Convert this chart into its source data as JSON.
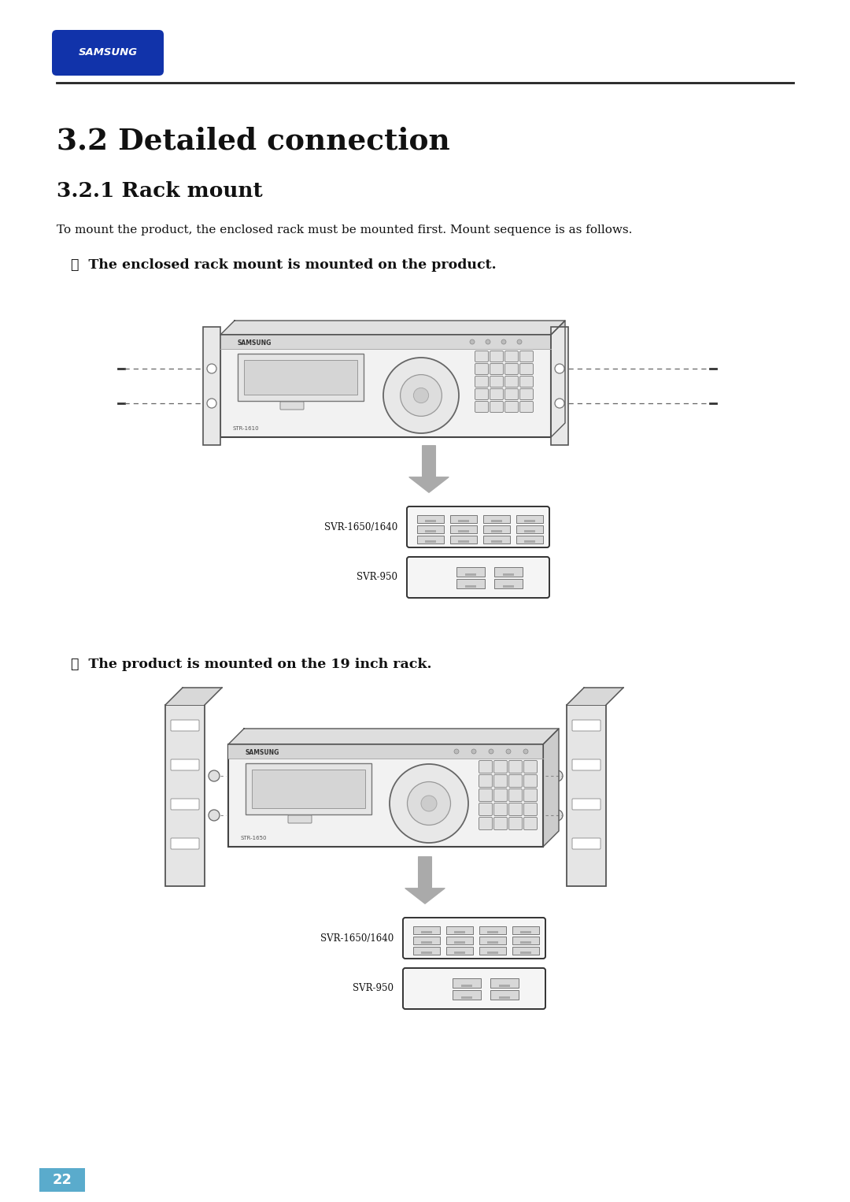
{
  "title_main": "3.2 Detailed connection",
  "title_sub": "3.2.1 Rack mount",
  "body_text": "To mount the product, the enclosed rack must be mounted first. Mount sequence is as follows.",
  "bullet1": "❖  The enclosed rack mount is mounted on the product.",
  "bullet2": "❖  The product is mounted on the 19 inch rack.",
  "label_svr1650_1640": "SVR-1650/1640",
  "label_svr950": "SVR-950",
  "page_num": "22",
  "bg_color": "#ffffff",
  "text_color": "#111111",
  "samsung_blue": "#1133aa",
  "page_tab_color": "#5aabcc"
}
